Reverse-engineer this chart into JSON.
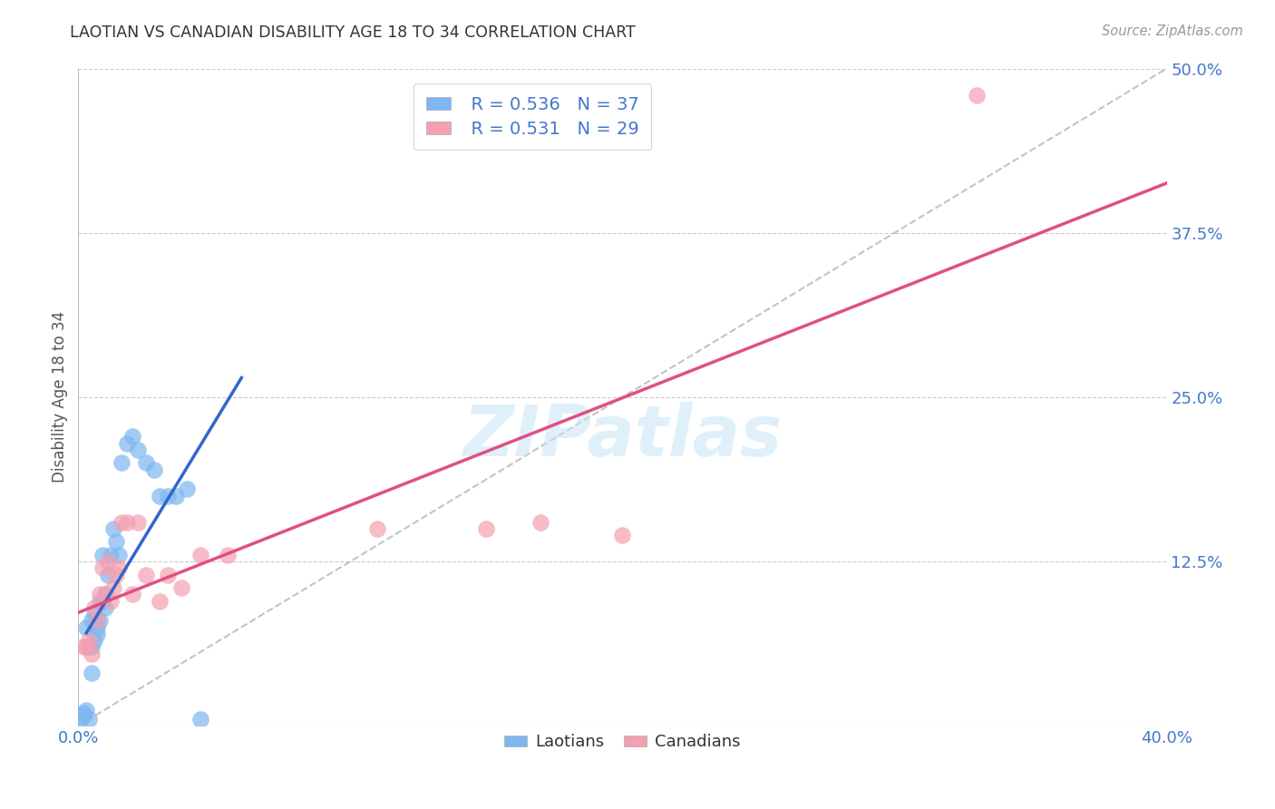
{
  "title": "LAOTIAN VS CANADIAN DISABILITY AGE 18 TO 34 CORRELATION CHART",
  "source": "Source: ZipAtlas.com",
  "ylabel": "Disability Age 18 to 34",
  "xlim": [
    0.0,
    0.4
  ],
  "ylim": [
    0.0,
    0.5
  ],
  "yticks_right": [
    0.0,
    0.125,
    0.25,
    0.375,
    0.5
  ],
  "ytick_labels_right": [
    "",
    "12.5%",
    "25.0%",
    "37.5%",
    "50.0%"
  ],
  "laotian_color": "#7EB6F0",
  "canadian_color": "#F4A0B0",
  "laotian_line_color": "#3366CC",
  "canadian_line_color": "#E05080",
  "ref_line_color": "#AAAAAA",
  "legend_R_laotian": "0.536",
  "legend_N_laotian": "37",
  "legend_R_canadian": "0.531",
  "legend_N_canadian": "29",
  "laotian_x": [
    0.001,
    0.002,
    0.002,
    0.003,
    0.003,
    0.004,
    0.004,
    0.005,
    0.005,
    0.005,
    0.006,
    0.006,
    0.007,
    0.007,
    0.007,
    0.008,
    0.008,
    0.009,
    0.009,
    0.01,
    0.01,
    0.011,
    0.012,
    0.013,
    0.014,
    0.015,
    0.016,
    0.018,
    0.02,
    0.022,
    0.025,
    0.028,
    0.03,
    0.033,
    0.036,
    0.04,
    0.045
  ],
  "laotian_y": [
    0.005,
    0.008,
    0.01,
    0.012,
    0.075,
    0.005,
    0.06,
    0.04,
    0.06,
    0.08,
    0.065,
    0.085,
    0.07,
    0.075,
    0.08,
    0.08,
    0.095,
    0.095,
    0.13,
    0.09,
    0.1,
    0.115,
    0.13,
    0.15,
    0.14,
    0.13,
    0.2,
    0.215,
    0.22,
    0.21,
    0.2,
    0.195,
    0.175,
    0.175,
    0.175,
    0.18,
    0.005
  ],
  "canadian_x": [
    0.002,
    0.003,
    0.004,
    0.005,
    0.006,
    0.007,
    0.008,
    0.009,
    0.01,
    0.011,
    0.012,
    0.013,
    0.014,
    0.015,
    0.016,
    0.018,
    0.02,
    0.022,
    0.025,
    0.03,
    0.033,
    0.038,
    0.045,
    0.055,
    0.11,
    0.15,
    0.17,
    0.2,
    0.33
  ],
  "canadian_y": [
    0.06,
    0.06,
    0.065,
    0.055,
    0.09,
    0.08,
    0.1,
    0.12,
    0.1,
    0.125,
    0.095,
    0.105,
    0.115,
    0.12,
    0.155,
    0.155,
    0.1,
    0.155,
    0.115,
    0.095,
    0.115,
    0.105,
    0.13,
    0.13,
    0.15,
    0.15,
    0.155,
    0.145,
    0.48
  ],
  "laotian_line_x": [
    0.003,
    0.06
  ],
  "canadian_line_x": [
    0.0,
    0.4
  ],
  "watermark_text": "ZIPatlas",
  "background_color": "#FFFFFF",
  "grid_color": "#CCCCCC",
  "axis_color": "#BBBBBB",
  "tick_label_color": "#4477CC",
  "title_color": "#333333",
  "source_color": "#999999",
  "ylabel_color": "#555555"
}
